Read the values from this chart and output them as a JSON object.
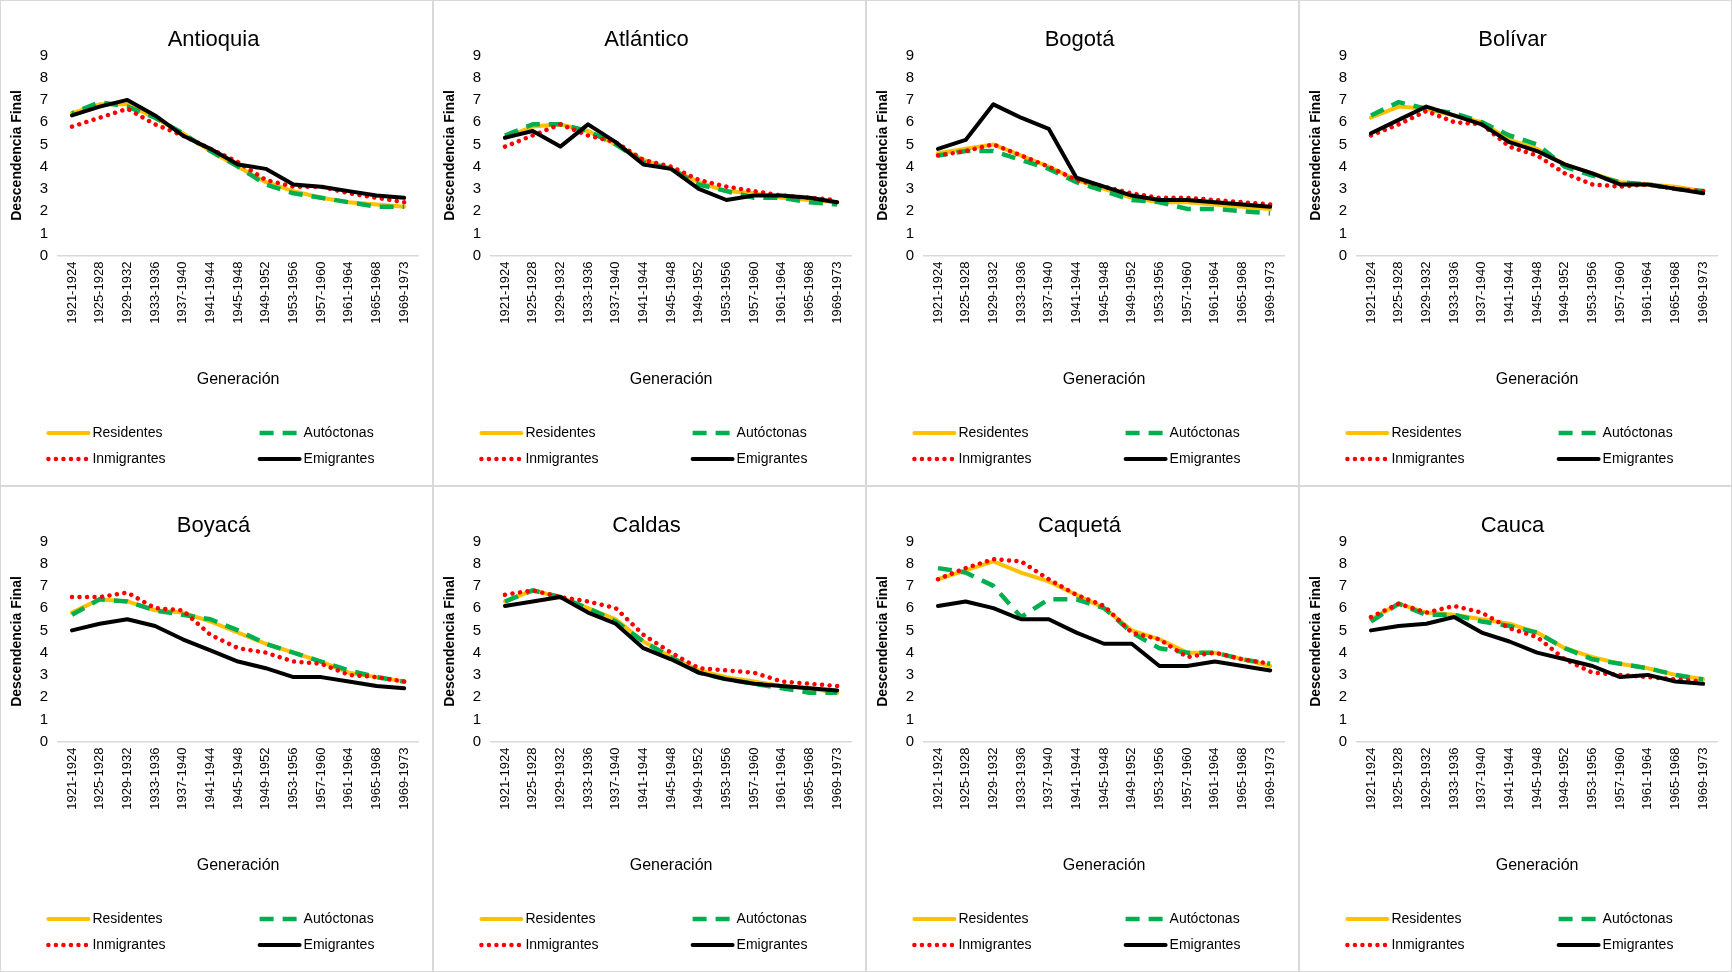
{
  "chart_data": [
    {
      "type": "line",
      "title": "Antioquia",
      "xlabel": "Generación",
      "ylabel": "Descendencia Final",
      "categories": [
        "1921-1924",
        "1925-1928",
        "1929-1932",
        "1933-1936",
        "1937-1940",
        "1941-1944",
        "1945-1948",
        "1949-1952",
        "1953-1956",
        "1957-1960",
        "1961-1964",
        "1965-1968",
        "1969-1973"
      ],
      "ylim": [
        0,
        9
      ],
      "yticks": [
        0,
        1,
        2,
        3,
        4,
        5,
        6,
        7,
        8,
        9
      ],
      "grid": false,
      "legend": "bottom",
      "marker": "none",
      "series": [
        {
          "name": "Residentes",
          "color": "#ffc000",
          "line_style": "solid",
          "values": [
            6.4,
            6.8,
            6.8,
            6.2,
            5.5,
            4.7,
            4.0,
            3.3,
            2.9,
            2.6,
            2.4,
            2.3,
            2.2
          ]
        },
        {
          "name": "Autóctonas",
          "color": "#00b050",
          "line_style": "dashed",
          "values": [
            6.4,
            6.9,
            6.7,
            6.2,
            5.5,
            4.7,
            4.0,
            3.2,
            2.8,
            2.6,
            2.4,
            2.2,
            2.2
          ]
        },
        {
          "name": "Inmigrantes",
          "color": "#ff0000",
          "line_style": "dotted",
          "values": [
            5.8,
            6.2,
            6.6,
            5.9,
            5.4,
            4.8,
            4.2,
            3.4,
            3.1,
            3.1,
            2.8,
            2.6,
            2.4
          ]
        },
        {
          "name": "Emigrantes",
          "color": "#000000",
          "line_style": "solid",
          "values": [
            6.3,
            6.7,
            7.0,
            6.3,
            5.4,
            4.8,
            4.1,
            3.9,
            3.2,
            3.1,
            2.9,
            2.7,
            2.6
          ]
        }
      ]
    },
    {
      "type": "line",
      "title": "Atlántico",
      "xlabel": "Generación",
      "ylabel": "Descendencia Final",
      "categories": [
        "1921-1924",
        "1925-1928",
        "1929-1932",
        "1933-1936",
        "1937-1940",
        "1941-1944",
        "1945-1948",
        "1949-1952",
        "1953-1956",
        "1957-1960",
        "1961-1964",
        "1965-1968",
        "1969-1973"
      ],
      "ylim": [
        0,
        9
      ],
      "yticks": [
        0,
        1,
        2,
        3,
        4,
        5,
        6,
        7,
        8,
        9
      ],
      "grid": false,
      "legend": "bottom",
      "marker": "none",
      "series": [
        {
          "name": "Residentes",
          "color": "#ffc000",
          "line_style": "solid",
          "values": [
            5.3,
            5.8,
            5.9,
            5.6,
            5.0,
            4.3,
            3.9,
            3.3,
            2.9,
            2.8,
            2.6,
            2.5,
            2.4
          ]
        },
        {
          "name": "Autóctonas",
          "color": "#00b050",
          "line_style": "dashed",
          "values": [
            5.4,
            5.9,
            5.9,
            5.6,
            5.0,
            4.2,
            3.9,
            3.2,
            2.9,
            2.6,
            2.6,
            2.4,
            2.3
          ]
        },
        {
          "name": "Inmigrantes",
          "color": "#ff0000",
          "line_style": "dotted",
          "values": [
            4.9,
            5.4,
            5.9,
            5.4,
            5.1,
            4.3,
            4.0,
            3.4,
            3.1,
            2.9,
            2.7,
            2.6,
            2.5
          ]
        },
        {
          "name": "Emigrantes",
          "color": "#000000",
          "line_style": "solid",
          "values": [
            5.3,
            5.6,
            4.9,
            5.9,
            5.1,
            4.1,
            3.9,
            3.0,
            2.5,
            2.7,
            2.7,
            2.6,
            2.4
          ]
        }
      ]
    },
    {
      "type": "line",
      "title": "Bogotá",
      "xlabel": "Generación",
      "ylabel": "Descendencia Final",
      "categories": [
        "1921-1924",
        "1925-1928",
        "1929-1932",
        "1933-1936",
        "1937-1940",
        "1941-1944",
        "1945-1948",
        "1949-1952",
        "1953-1956",
        "1957-1960",
        "1961-1964",
        "1965-1968",
        "1969-1973"
      ],
      "ylim": [
        0,
        9
      ],
      "yticks": [
        0,
        1,
        2,
        3,
        4,
        5,
        6,
        7,
        8,
        9
      ],
      "grid": false,
      "legend": "bottom",
      "marker": "none",
      "series": [
        {
          "name": "Residentes",
          "color": "#ffc000",
          "line_style": "solid",
          "values": [
            4.6,
            4.8,
            5.0,
            4.5,
            4.0,
            3.4,
            3.0,
            2.6,
            2.4,
            2.4,
            2.3,
            2.2,
            2.1
          ]
        },
        {
          "name": "Autóctonas",
          "color": "#00b050",
          "line_style": "dashed",
          "values": [
            4.5,
            4.7,
            4.7,
            4.3,
            3.9,
            3.3,
            2.9,
            2.5,
            2.4,
            2.1,
            2.1,
            2.0,
            1.9
          ]
        },
        {
          "name": "Inmigrantes",
          "color": "#ff0000",
          "line_style": "dotted",
          "values": [
            4.5,
            4.7,
            5.0,
            4.5,
            4.0,
            3.4,
            3.1,
            2.8,
            2.6,
            2.6,
            2.5,
            2.4,
            2.3
          ]
        },
        {
          "name": "Emigrantes",
          "color": "#000000",
          "line_style": "solid",
          "values": [
            4.8,
            5.2,
            6.8,
            6.2,
            5.7,
            3.5,
            3.1,
            2.7,
            2.5,
            2.5,
            2.4,
            2.3,
            2.2
          ]
        }
      ]
    },
    {
      "type": "line",
      "title": "Bolívar",
      "xlabel": "Generación",
      "ylabel": "Descendencia Final",
      "categories": [
        "1921-1924",
        "1925-1928",
        "1929-1932",
        "1933-1936",
        "1937-1940",
        "1941-1944",
        "1945-1948",
        "1949-1952",
        "1953-1956",
        "1957-1960",
        "1961-1964",
        "1965-1968",
        "1969-1973"
      ],
      "ylim": [
        0,
        9
      ],
      "yticks": [
        0,
        1,
        2,
        3,
        4,
        5,
        6,
        7,
        8,
        9
      ],
      "grid": false,
      "legend": "bottom",
      "marker": "none",
      "series": [
        {
          "name": "Residentes",
          "color": "#ffc000",
          "line_style": "solid",
          "values": [
            6.2,
            6.7,
            6.6,
            6.3,
            6.0,
            5.2,
            4.8,
            4.1,
            3.7,
            3.3,
            3.2,
            3.1,
            2.9
          ]
        },
        {
          "name": "Autóctonas",
          "color": "#00b050",
          "line_style": "dashed",
          "values": [
            6.3,
            6.9,
            6.6,
            6.4,
            6.0,
            5.4,
            5.0,
            4.0,
            3.6,
            3.3,
            3.2,
            3.0,
            2.9
          ]
        },
        {
          "name": "Inmigrantes",
          "color": "#ff0000",
          "line_style": "dotted",
          "values": [
            5.4,
            5.9,
            6.5,
            6.0,
            5.9,
            4.9,
            4.5,
            3.7,
            3.2,
            3.1,
            3.2,
            3.0,
            2.9
          ]
        },
        {
          "name": "Emigrantes",
          "color": "#000000",
          "line_style": "solid",
          "values": [
            5.5,
            6.1,
            6.7,
            6.3,
            5.9,
            5.1,
            4.7,
            4.1,
            3.7,
            3.2,
            3.2,
            3.0,
            2.8
          ]
        }
      ]
    },
    {
      "type": "line",
      "title": "Boyacá",
      "xlabel": "Generación",
      "ylabel": "Descendencia Final",
      "categories": [
        "1921-1924",
        "1925-1928",
        "1929-1932",
        "1933-1936",
        "1937-1940",
        "1941-1944",
        "1945-1948",
        "1949-1952",
        "1953-1956",
        "1957-1960",
        "1961-1964",
        "1965-1968",
        "1969-1973"
      ],
      "ylim": [
        0,
        9
      ],
      "yticks": [
        0,
        1,
        2,
        3,
        4,
        5,
        6,
        7,
        8,
        9
      ],
      "grid": false,
      "legend": "bottom",
      "marker": "none",
      "series": [
        {
          "name": "Residentes",
          "color": "#ffc000",
          "line_style": "solid",
          "values": [
            5.8,
            6.4,
            6.3,
            5.9,
            5.8,
            5.4,
            4.9,
            4.4,
            4.0,
            3.6,
            3.1,
            2.9,
            2.7
          ]
        },
        {
          "name": "Autóctonas",
          "color": "#00b050",
          "line_style": "dashed",
          "values": [
            5.7,
            6.4,
            6.3,
            5.9,
            5.7,
            5.5,
            5.0,
            4.4,
            4.0,
            3.6,
            3.2,
            2.9,
            2.7
          ]
        },
        {
          "name": "Inmigrantes",
          "color": "#ff0000",
          "line_style": "dotted",
          "values": [
            6.5,
            6.5,
            6.7,
            6.0,
            5.9,
            4.8,
            4.2,
            4.0,
            3.6,
            3.5,
            3.0,
            2.9,
            2.7
          ]
        },
        {
          "name": "Emigrantes",
          "color": "#000000",
          "line_style": "solid",
          "values": [
            5.0,
            5.3,
            5.5,
            5.2,
            4.6,
            4.1,
            3.6,
            3.3,
            2.9,
            2.9,
            2.7,
            2.5,
            2.4
          ]
        }
      ]
    },
    {
      "type": "line",
      "title": "Caldas",
      "xlabel": "Generación",
      "ylabel": "Descendencia Final",
      "categories": [
        "1921-1924",
        "1925-1928",
        "1929-1932",
        "1933-1936",
        "1937-1940",
        "1941-1944",
        "1945-1948",
        "1949-1952",
        "1953-1956",
        "1957-1960",
        "1961-1964",
        "1965-1968",
        "1969-1973"
      ],
      "ylim": [
        0,
        9
      ],
      "yticks": [
        0,
        1,
        2,
        3,
        4,
        5,
        6,
        7,
        8,
        9
      ],
      "grid": false,
      "legend": "bottom",
      "marker": "none",
      "series": [
        {
          "name": "Residentes",
          "color": "#ffc000",
          "line_style": "solid",
          "values": [
            6.3,
            6.8,
            6.5,
            6.0,
            5.5,
            4.5,
            3.8,
            3.2,
            2.9,
            2.7,
            2.5,
            2.4,
            2.2
          ]
        },
        {
          "name": "Autóctonas",
          "color": "#00b050",
          "line_style": "dashed",
          "values": [
            6.3,
            6.8,
            6.5,
            6.0,
            5.4,
            4.5,
            3.8,
            3.1,
            2.8,
            2.6,
            2.4,
            2.2,
            2.2
          ]
        },
        {
          "name": "Inmigrantes",
          "color": "#ff0000",
          "line_style": "dotted",
          "values": [
            6.6,
            6.8,
            6.5,
            6.3,
            6.0,
            4.8,
            4.0,
            3.3,
            3.2,
            3.1,
            2.7,
            2.6,
            2.5
          ]
        },
        {
          "name": "Emigrantes",
          "color": "#000000",
          "line_style": "solid",
          "values": [
            6.1,
            6.3,
            6.5,
            5.8,
            5.3,
            4.2,
            3.7,
            3.1,
            2.8,
            2.6,
            2.5,
            2.4,
            2.3
          ]
        }
      ]
    },
    {
      "type": "line",
      "title": "Caquetá",
      "xlabel": "Generación",
      "ylabel": "Descendencia Final",
      "categories": [
        "1921-1924",
        "1925-1928",
        "1929-1932",
        "1933-1936",
        "1937-1940",
        "1941-1944",
        "1945-1948",
        "1949-1952",
        "1953-1956",
        "1957-1960",
        "1961-1964",
        "1965-1968",
        "1969-1973"
      ],
      "ylim": [
        0,
        9
      ],
      "yticks": [
        0,
        1,
        2,
        3,
        4,
        5,
        6,
        7,
        8,
        9
      ],
      "grid": false,
      "legend": "bottom",
      "marker": "none",
      "series": [
        {
          "name": "Residentes",
          "color": "#ffc000",
          "line_style": "solid",
          "values": [
            7.3,
            7.7,
            8.1,
            7.6,
            7.2,
            6.6,
            6.0,
            5.0,
            4.6,
            4.0,
            4.0,
            3.7,
            3.4
          ]
        },
        {
          "name": "Autóctonas",
          "color": "#00b050",
          "line_style": "dashed",
          "values": [
            7.8,
            7.6,
            7.0,
            5.6,
            6.4,
            6.4,
            6.0,
            4.9,
            4.2,
            4.0,
            4.0,
            3.7,
            3.5
          ]
        },
        {
          "name": "Inmigrantes",
          "color": "#ff0000",
          "line_style": "dotted",
          "values": [
            7.3,
            7.8,
            8.2,
            8.1,
            7.3,
            6.6,
            6.1,
            4.9,
            4.6,
            3.8,
            4.0,
            3.7,
            3.5
          ]
        },
        {
          "name": "Emigrantes",
          "color": "#000000",
          "line_style": "solid",
          "values": [
            6.1,
            6.3,
            6.0,
            5.5,
            5.5,
            4.9,
            4.4,
            4.4,
            3.4,
            3.4,
            3.6,
            3.4,
            3.2
          ]
        }
      ]
    },
    {
      "type": "line",
      "title": "Cauca",
      "xlabel": "Generación",
      "ylabel": "Descendencia Final",
      "categories": [
        "1921-1924",
        "1925-1928",
        "1929-1932",
        "1933-1936",
        "1937-1940",
        "1941-1944",
        "1945-1948",
        "1949-1952",
        "1953-1956",
        "1957-1960",
        "1961-1964",
        "1965-1968",
        "1969-1973"
      ],
      "ylim": [
        0,
        9
      ],
      "yticks": [
        0,
        1,
        2,
        3,
        4,
        5,
        6,
        7,
        8,
        9
      ],
      "grid": false,
      "legend": "bottom",
      "marker": "none",
      "series": [
        {
          "name": "Residentes",
          "color": "#ffc000",
          "line_style": "solid",
          "values": [
            5.5,
            6.2,
            5.8,
            5.7,
            5.5,
            5.3,
            4.9,
            4.2,
            3.8,
            3.5,
            3.3,
            3.0,
            2.8
          ]
        },
        {
          "name": "Autóctonas",
          "color": "#00b050",
          "line_style": "dashed",
          "values": [
            5.4,
            6.2,
            5.7,
            5.7,
            5.4,
            5.2,
            4.9,
            4.2,
            3.7,
            3.5,
            3.3,
            3.0,
            2.8
          ]
        },
        {
          "name": "Inmigrantes",
          "color": "#ff0000",
          "line_style": "dotted",
          "values": [
            5.6,
            6.2,
            5.8,
            6.1,
            5.8,
            5.1,
            4.7,
            3.7,
            3.1,
            3.0,
            2.9,
            2.8,
            2.7
          ]
        },
        {
          "name": "Emigrantes",
          "color": "#000000",
          "line_style": "solid",
          "values": [
            5.0,
            5.2,
            5.3,
            5.6,
            4.9,
            4.5,
            4.0,
            3.7,
            3.4,
            2.9,
            3.0,
            2.7,
            2.6
          ]
        }
      ]
    }
  ]
}
